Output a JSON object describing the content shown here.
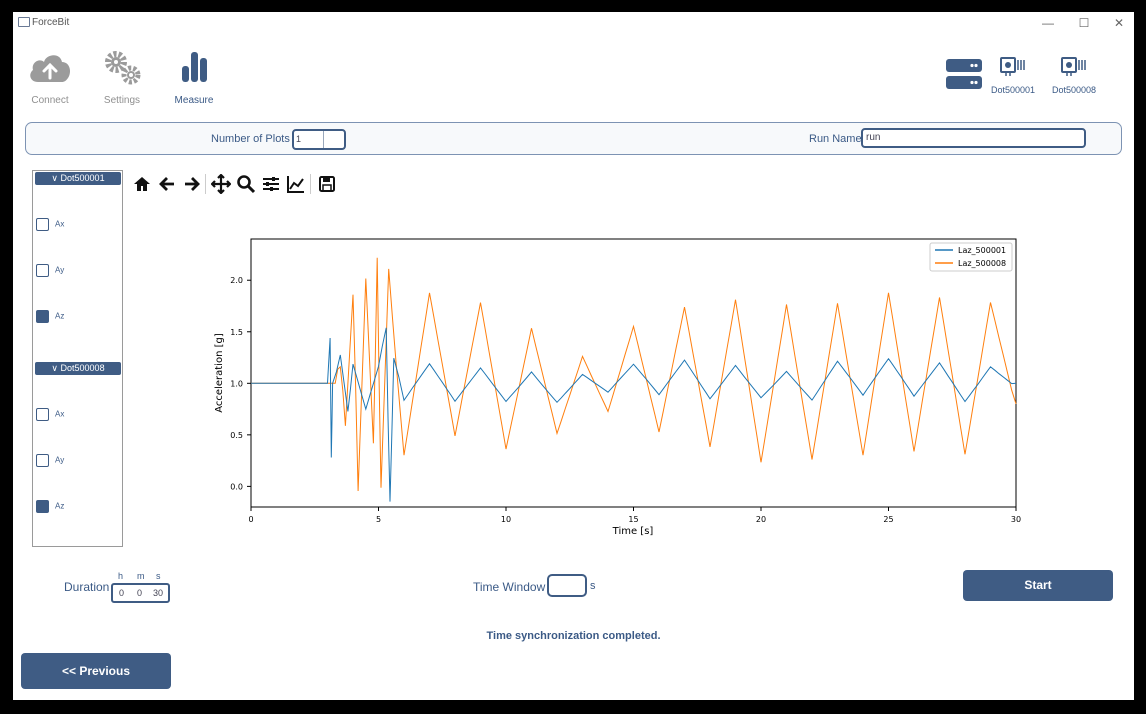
{
  "window": {
    "title": "ForceBit"
  },
  "nav": [
    {
      "label": "Connect",
      "icon": "cloud-upload-icon"
    },
    {
      "label": "Settings",
      "icon": "gears-icon"
    },
    {
      "label": "Measure",
      "icon": "bar-chart-icon"
    }
  ],
  "devices": [
    {
      "label": "",
      "icon": "server-icon"
    },
    {
      "label": "Dot500001",
      "icon": "sensor-chip-icon"
    },
    {
      "label": "Dot500008",
      "icon": "sensor-chip-icon"
    }
  ],
  "config": {
    "plots_label": "Number of Plots",
    "plots_value": "1",
    "run_label": "Run Name",
    "run_value": "run"
  },
  "sensors": [
    {
      "name": "Dot500001",
      "channels": [
        {
          "label": "Ax",
          "checked": false
        },
        {
          "label": "Ay",
          "checked": false
        },
        {
          "label": "Az",
          "checked": true
        }
      ]
    },
    {
      "name": "Dot500008",
      "channels": [
        {
          "label": "Ax",
          "checked": false
        },
        {
          "label": "Ay",
          "checked": false
        },
        {
          "label": "Az",
          "checked": true
        }
      ]
    }
  ],
  "toolbar": [
    "home-icon",
    "back-arrow-icon",
    "forward-arrow-icon",
    "pan-icon",
    "zoom-icon",
    "subplots-icon",
    "axes-edit-icon",
    "save-icon"
  ],
  "duration": {
    "label": "Duration",
    "h_label": "h",
    "m_label": "m",
    "s_label": "s",
    "h": "0",
    "m": "0",
    "s": "30"
  },
  "time_window": {
    "label": "Time Window",
    "unit": "s",
    "value": ""
  },
  "buttons": {
    "start": "Start",
    "previous": "<<  Previous"
  },
  "status": "Time synchronization completed.",
  "colors": {
    "accent": "#3f5c84",
    "series1": "#1f77b4",
    "series2": "#ff7f0e"
  },
  "chart_data": {
    "type": "line",
    "title": "",
    "xlabel": "Time [s]",
    "ylabel": "Acceleration [g]",
    "xlim": [
      0,
      30
    ],
    "ylim": [
      -0.2,
      2.4
    ],
    "xticks": [
      0,
      5,
      10,
      15,
      20,
      25,
      30
    ],
    "yticks": [
      0.0,
      0.5,
      1.0,
      1.5,
      2.0
    ],
    "legend_position": "top-right",
    "series": [
      {
        "name": "Laz_500001",
        "color": "#1f77b4",
        "x": [
          0,
          3.0,
          3.1,
          3.15,
          3.2,
          3.5,
          3.8,
          4.0,
          4.5,
          5.0,
          5.3,
          5.45,
          5.6,
          6.0,
          7.0,
          8.0,
          9.0,
          10.0,
          11.0,
          12.0,
          13.0,
          14.0,
          15.0,
          16.0,
          17.0,
          18.0,
          19.0,
          20.0,
          21.0,
          22.0,
          23.0,
          24.0,
          25.0,
          26.0,
          27.0,
          28.0,
          29.0,
          30.0
        ],
        "y": [
          1.0,
          1.0,
          1.44,
          0.28,
          1.0,
          1.3,
          0.7,
          1.2,
          0.75,
          1.15,
          1.5,
          -0.17,
          1.25,
          0.8,
          1.15,
          0.8,
          1.15,
          0.85,
          1.15,
          0.85,
          1.1,
          0.9,
          1.15,
          0.85,
          1.2,
          0.85,
          1.2,
          0.9,
          1.15,
          0.85,
          1.2,
          0.85,
          1.2,
          0.85,
          1.2,
          0.85,
          1.2,
          1.0
        ]
      },
      {
        "name": "Laz_500008",
        "color": "#ff7f0e",
        "x": [
          0,
          3.3,
          3.5,
          3.7,
          4.0,
          4.2,
          4.5,
          4.8,
          4.95,
          5.1,
          5.4,
          6.0,
          7.0,
          8.0,
          9.0,
          10.0,
          11.0,
          12.0,
          13.0,
          14.0,
          15.0,
          16.0,
          17.0,
          18.0,
          19.0,
          20.0,
          21.0,
          22.0,
          23.0,
          24.0,
          25.0,
          26.0,
          27.0,
          28.0,
          29.0,
          30.0
        ],
        "y": [
          1.0,
          1.0,
          1.2,
          0.6,
          1.9,
          -0.02,
          2.05,
          0.4,
          2.18,
          -0.05,
          2.12,
          0.3,
          1.85,
          0.45,
          1.75,
          0.35,
          1.55,
          0.55,
          1.3,
          0.75,
          1.55,
          0.5,
          1.7,
          0.35,
          1.8,
          0.25,
          1.8,
          0.3,
          1.8,
          0.3,
          1.85,
          0.3,
          1.8,
          0.3,
          1.8,
          0.8
        ]
      }
    ]
  }
}
